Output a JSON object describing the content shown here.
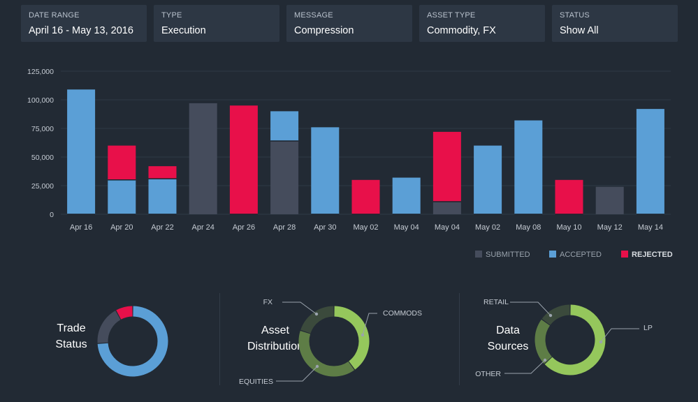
{
  "filters": [
    {
      "label": "DATE RANGE",
      "value": "April 16 - May 13, 2016"
    },
    {
      "label": "TYPE",
      "value": "Execution"
    },
    {
      "label": "MESSAGE",
      "value": "Compression"
    },
    {
      "label": "ASSET TYPE",
      "value": "Commodity, FX"
    },
    {
      "label": "STATUS",
      "value": "Show All"
    }
  ],
  "colors": {
    "submitted": "#454c5c",
    "accepted": "#5b9fd6",
    "rejected": "#e8104a",
    "fx": "#3b4a3c",
    "commods": "#95c75c",
    "equities": "#5e7d46",
    "retail": "#3b4a3c",
    "lp": "#95c75c",
    "other": "#5e7d46"
  },
  "chart_data": [
    {
      "type": "bar",
      "stacked": true,
      "categories": [
        "Apr 16",
        "Apr 20",
        "Apr 22",
        "Apr 24",
        "Apr 26",
        "Apr 28",
        "Apr 30",
        "May 02",
        "May 04",
        "May 04",
        "May 02",
        "May 08",
        "May 10",
        "May 12",
        "May 14"
      ],
      "series": [
        {
          "name": "SUBMITTED",
          "values": [
            0,
            0,
            0,
            97000,
            0,
            64000,
            0,
            0,
            0,
            11000,
            0,
            0,
            0,
            24000,
            0
          ]
        },
        {
          "name": "ACCEPTED",
          "values": [
            109000,
            30000,
            31000,
            0,
            0,
            26000,
            76000,
            0,
            32000,
            0,
            60000,
            82000,
            0,
            0,
            92000
          ]
        },
        {
          "name": "REJECTED",
          "values": [
            0,
            30000,
            11000,
            0,
            95000,
            0,
            0,
            30000,
            0,
            61000,
            0,
            0,
            30000,
            0,
            0
          ]
        }
      ],
      "yticks": [
        "125,000",
        "100,000",
        "75,000",
        "50,000",
        "25,000",
        "0"
      ],
      "ylim": [
        0,
        125000
      ],
      "grid": true,
      "legend": "bottom-right"
    },
    {
      "type": "pie",
      "title": "Trade Status",
      "categories": [
        "ACCEPTED",
        "SUBMITTED",
        "REJECTED"
      ],
      "values": [
        74,
        18,
        8
      ]
    },
    {
      "type": "pie",
      "title": "Asset Distribution",
      "categories": [
        "COMMODS",
        "EQUITIES",
        "FX"
      ],
      "values": [
        40,
        40,
        20
      ]
    },
    {
      "type": "pie",
      "title": "Data Sources",
      "categories": [
        "LP",
        "OTHER",
        "RETAIL"
      ],
      "values": [
        63,
        22,
        15
      ]
    }
  ],
  "donuts": {
    "trade": {
      "line1": "Trade",
      "line2": "Status"
    },
    "asset": {
      "line1": "Asset",
      "line2": "Distribution",
      "labels": {
        "fx": "FX",
        "commods": "COMMODS",
        "equities": "EQUITIES"
      }
    },
    "sources": {
      "line1": "Data",
      "line2": "Sources",
      "labels": {
        "retail": "RETAIL",
        "lp": "LP",
        "other": "OTHER"
      }
    }
  }
}
